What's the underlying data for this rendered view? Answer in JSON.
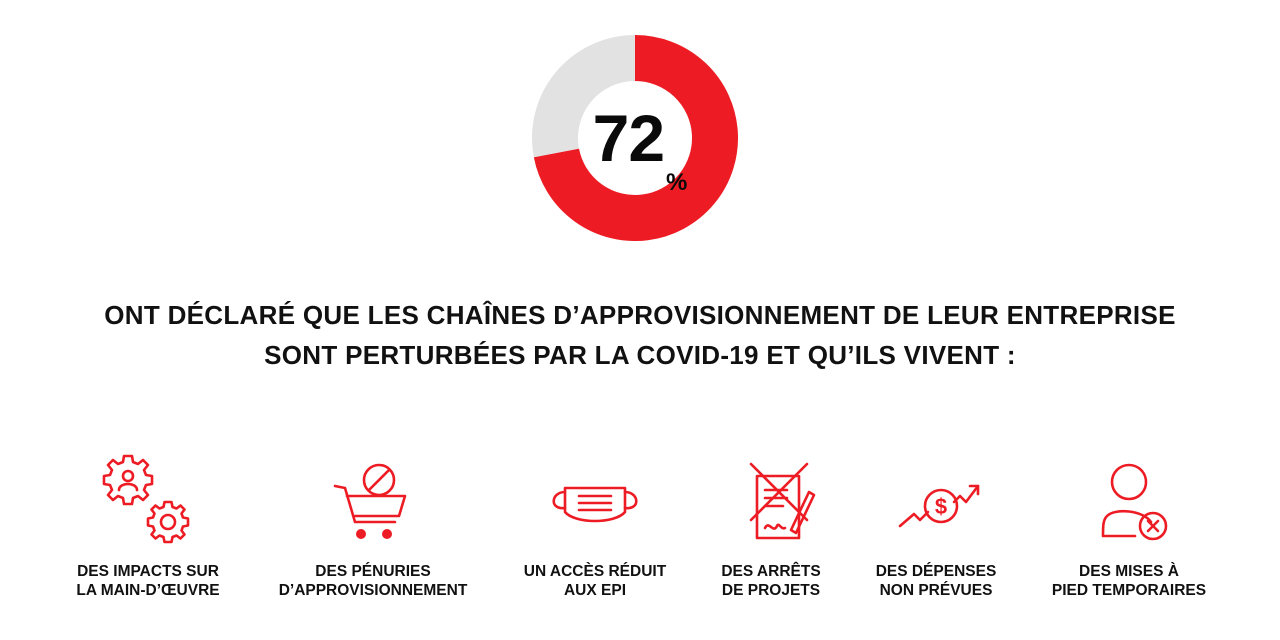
{
  "chart_data": {
    "type": "pie",
    "values": [
      72,
      28
    ],
    "center_label": {
      "value": "72",
      "unit": "%"
    },
    "colors": {
      "highlight": "#ed1c24",
      "remainder": "#e2e2e2"
    }
  },
  "headline": {
    "line1": "ONT DÉCLARÉ QUE LES CHAÎNES D’APPROVISIONNEMENT DE LEUR ENTREPRISE",
    "line2": "SONT PERTURBÉES PAR LA COVID-19 ET QU’ILS VIVENT :"
  },
  "impacts": [
    {
      "icon": "gears-person-icon",
      "line1": "DES IMPACTS SUR",
      "line2": "LA MAIN-D’ŒUVRE"
    },
    {
      "icon": "cart-blocked-icon",
      "line1": "DES PÉNURIES",
      "line2": "D’APPROVISIONNEMENT"
    },
    {
      "icon": "face-mask-icon",
      "line1": "UN ACCÈS RÉDUIT",
      "line2": "AUX EPI"
    },
    {
      "icon": "crossed-contract-icon",
      "line1": "DES ARRÊTS",
      "line2": "DE PROJETS"
    },
    {
      "icon": "rising-cost-icon",
      "line1": "DES DÉPENSES",
      "line2": "NON PRÉVUES"
    },
    {
      "icon": "person-removed-icon",
      "line1": "DES MISES À",
      "line2": "PIED TEMPORAIRES"
    }
  ]
}
